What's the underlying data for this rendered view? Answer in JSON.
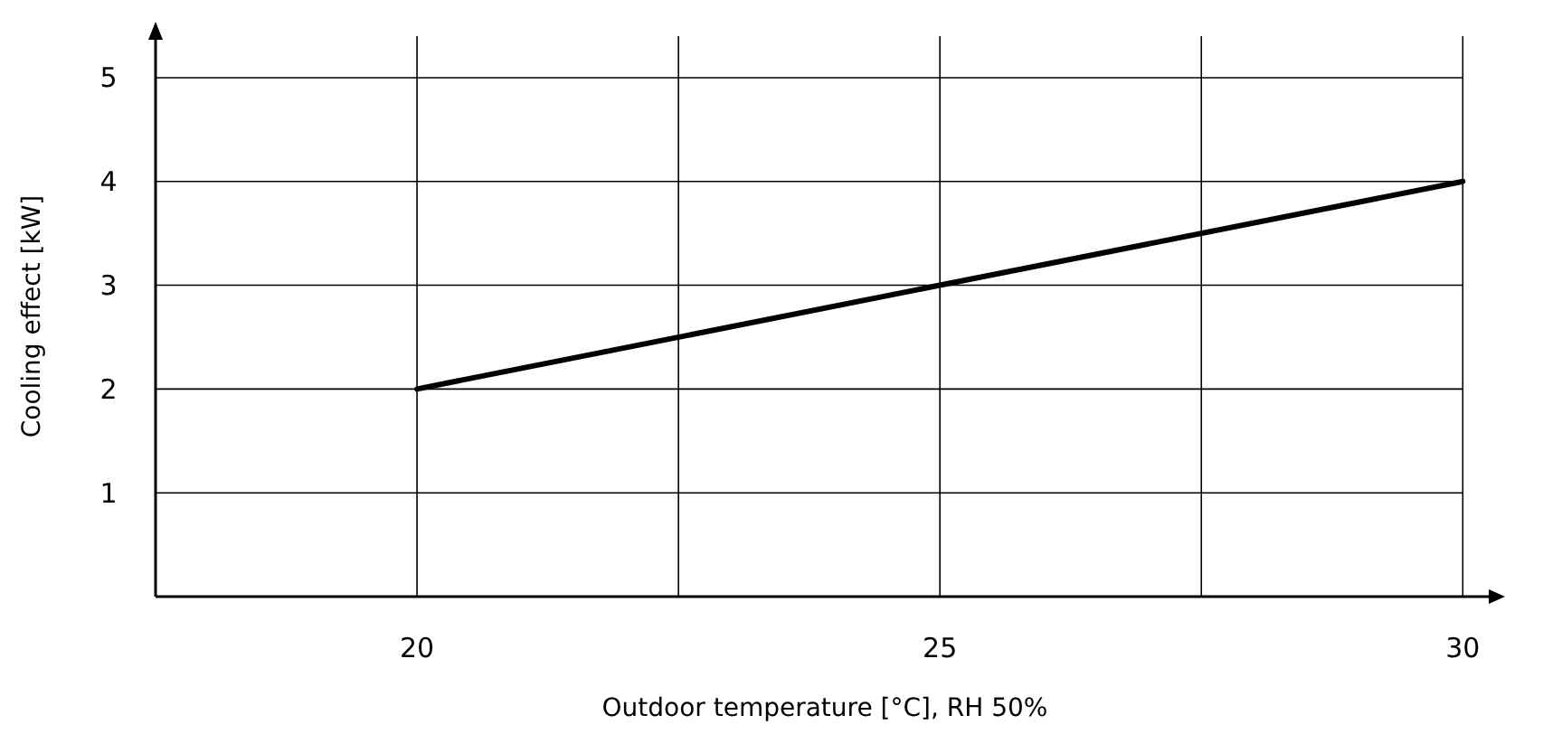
{
  "chart_data": {
    "type": "line",
    "xlabel": "Outdoor temperature [°C], RH 50%",
    "ylabel": "Cooling effect [kW]",
    "x": [
      20,
      25,
      30
    ],
    "series": [
      {
        "color": "#000000",
        "values": [
          2,
          3,
          4
        ]
      }
    ],
    "xlim": [
      17.5,
      30.3
    ],
    "ylim": [
      0,
      5.4
    ],
    "xticks": [
      20,
      {
        "value": 22.5,
        "label": null
      },
      25,
      {
        "value": 27.5,
        "label": null
      },
      30
    ],
    "yticks": [
      1,
      2,
      3,
      4,
      5
    ],
    "grid": true,
    "marker": "none",
    "line_style": "solid"
  }
}
